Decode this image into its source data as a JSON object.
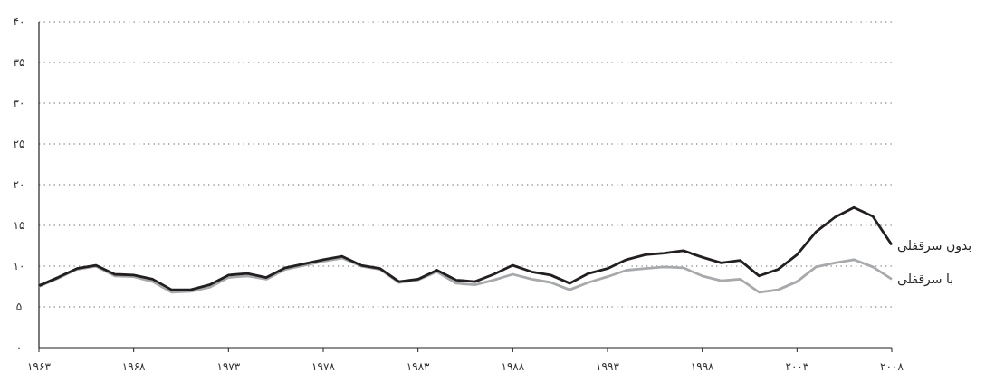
{
  "chart_data": {
    "type": "line",
    "x": [
      1963,
      1964,
      1965,
      1966,
      1967,
      1968,
      1969,
      1970,
      1971,
      1972,
      1973,
      1974,
      1975,
      1976,
      1977,
      1978,
      1979,
      1980,
      1981,
      1982,
      1983,
      1984,
      1985,
      1986,
      1987,
      1988,
      1989,
      1990,
      1991,
      1992,
      1993,
      1994,
      1995,
      1996,
      1997,
      1998,
      1999,
      2000,
      2001,
      2002,
      2003,
      2004,
      2005,
      2006,
      2007,
      2008
    ],
    "series": [
      {
        "name": "بدون سرقفلی",
        "color": "#231f20",
        "values": [
          7.6,
          8.6,
          9.7,
          10.1,
          9.0,
          8.9,
          8.4,
          7.1,
          7.1,
          7.7,
          8.9,
          9.1,
          8.6,
          9.8,
          10.3,
          10.8,
          11.2,
          10.1,
          9.7,
          8.1,
          8.4,
          9.5,
          8.3,
          8.1,
          9.0,
          10.1,
          9.3,
          8.9,
          7.9,
          9.1,
          9.7,
          10.8,
          11.4,
          11.6,
          11.9,
          11.1,
          10.4,
          10.7,
          8.8,
          9.6,
          11.4,
          14.2,
          16.0,
          17.2,
          16.1,
          12.6
        ]
      },
      {
        "name": "با سرقفلی",
        "color": "#a7a9ac",
        "values": [
          7.5,
          8.5,
          9.6,
          10.0,
          8.8,
          8.7,
          8.1,
          6.8,
          6.9,
          7.4,
          8.6,
          8.8,
          8.4,
          9.6,
          10.1,
          10.6,
          11.0,
          10.0,
          9.6,
          8.0,
          8.3,
          9.3,
          7.9,
          7.7,
          8.3,
          9.0,
          8.4,
          8.0,
          7.1,
          8.0,
          8.7,
          9.5,
          9.7,
          9.9,
          9.8,
          8.8,
          8.2,
          8.4,
          6.8,
          7.1,
          8.1,
          9.9,
          10.4,
          10.8,
          9.9,
          8.4
        ]
      }
    ],
    "xlim": [
      1963,
      2008
    ],
    "xticks": [
      {
        "value": 1963,
        "label": "۱۹۶۳"
      },
      {
        "value": 1968,
        "label": "۱۹۶۸"
      },
      {
        "value": 1973,
        "label": "۱۹۷۳"
      },
      {
        "value": 1978,
        "label": "۱۹۷۸"
      },
      {
        "value": 1983,
        "label": "۱۹۸۳"
      },
      {
        "value": 1988,
        "label": "۱۹۸۸"
      },
      {
        "value": 1993,
        "label": "۱۹۹۳"
      },
      {
        "value": 1998,
        "label": "۱۹۹۸"
      },
      {
        "value": 2003,
        "label": "۲۰۰۳"
      },
      {
        "value": 2008,
        "label": "۲۰۰۸"
      }
    ],
    "ylim": [
      0,
      40
    ],
    "yticks": [
      {
        "value": 0,
        "label": "٠"
      },
      {
        "value": 5,
        "label": "۵"
      },
      {
        "value": 10,
        "label": "۱۰"
      },
      {
        "value": 15,
        "label": "۱۵"
      },
      {
        "value": 20,
        "label": "۲۰"
      },
      {
        "value": 25,
        "label": "۲۵"
      },
      {
        "value": 30,
        "label": "۳۰"
      },
      {
        "value": 35,
        "label": "۳۵"
      },
      {
        "value": 40,
        "label": "۴۰"
      }
    ],
    "grid": "y",
    "legend": false,
    "marker": "none",
    "line_style": "solid"
  }
}
